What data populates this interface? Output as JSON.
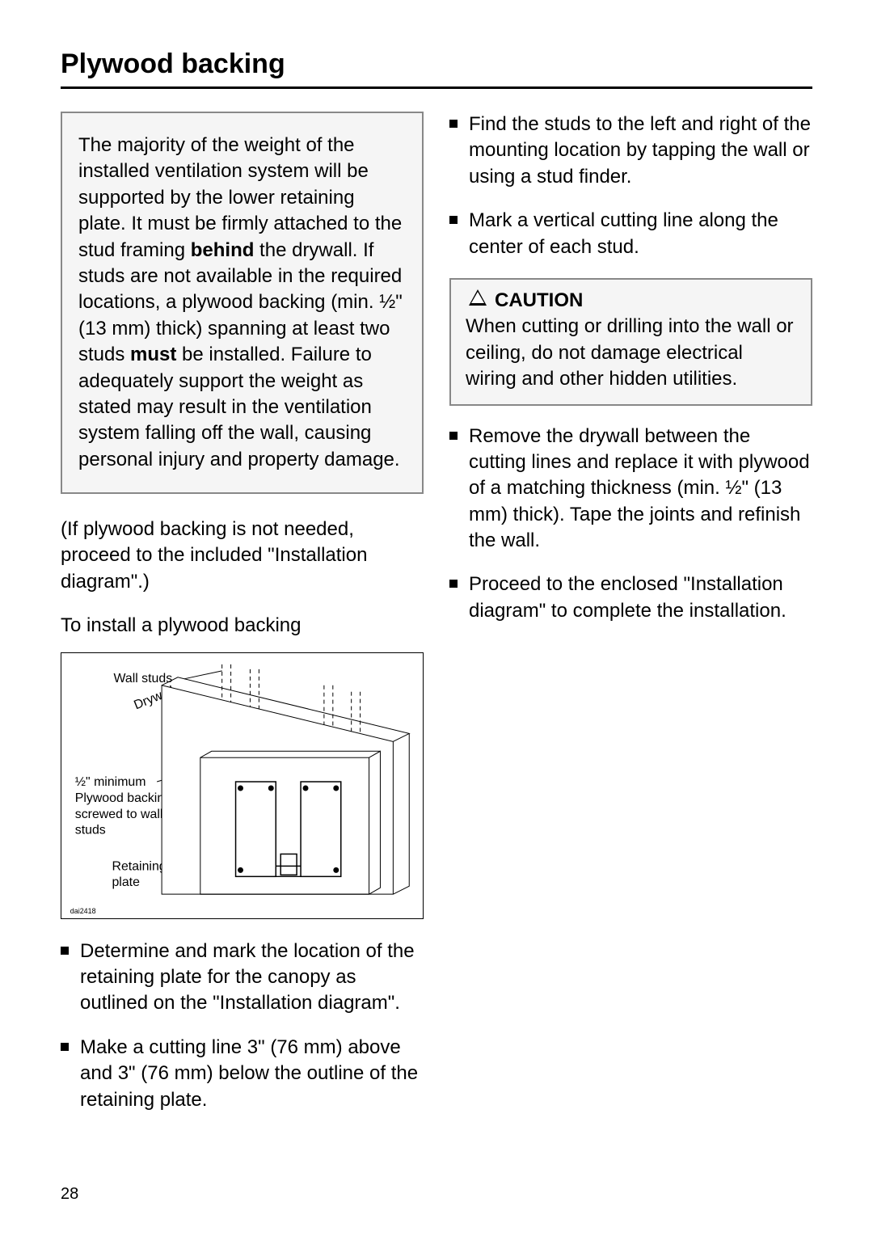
{
  "page": {
    "title": "Plywood backing",
    "number": "28"
  },
  "left": {
    "warning": "The majority of the weight of the installed ventilation system will be supported by the lower retaining plate. It must be firmly attached to the stud framing <b>behind</b> the drywall. If studs are not available in the required locations, a plywood backing (min. ½\" (13 mm) thick) spanning at least two studs <b>must</b> be installed. Failure to adequately support the weight as stated may result in the ventilation system falling off the wall, causing personal injury and property damage.",
    "skip_note": "(If plywood backing is not needed, proceed to the included \"Installation diagram\".)",
    "subhead": "To install a plywood backing",
    "diagram": {
      "label_wall_studs": "Wall studs",
      "label_drywall": "Drywall",
      "label_plywood": "½\" minimum Plywood backing screwed to wall studs",
      "label_retaining": "Retaining plate",
      "code": "dai2418"
    },
    "step1": "Determine and mark the location of the retaining plate for the canopy as outlined on the \"Installation diagram\".",
    "step2": "Make a cutting line 3\" (76 mm) above and 3\" (76 mm) below the outline of the retaining plate."
  },
  "right": {
    "step3": "Find the studs to the left and right of the mounting location by tapping the wall or using a stud finder.",
    "step4": "Mark a vertical cutting line along the center of each stud.",
    "caution_title": "CAUTION",
    "caution_body": "When cutting or drilling into the wall or ceiling, do not damage electrical wiring and other hidden utilities.",
    "step5": "Remove the drywall between the cutting lines and replace it with plywood of a matching thickness (min. ½\" (13 mm) thick). Tape the joints and refinish the wall.",
    "step6": "Proceed to the enclosed \"Installation diagram\" to complete the installation."
  }
}
